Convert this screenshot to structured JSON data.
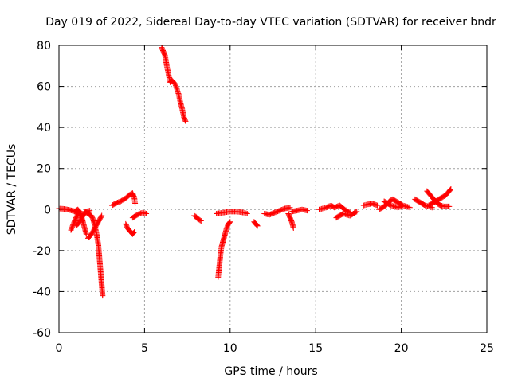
{
  "chart_data": {
    "type": "scatter",
    "title": "Day 019 of 2022, Sidereal Day-to-day VTEC variation (SDTVAR) for receiver bndr",
    "xlabel": "GPS time / hours",
    "ylabel": "SDTVAR / TECUs",
    "xlim": [
      0,
      25
    ],
    "ylim": [
      -60,
      80
    ],
    "xticks": [
      0,
      5,
      10,
      15,
      20,
      25
    ],
    "yticks": [
      -60,
      -40,
      -20,
      0,
      20,
      40,
      60,
      80
    ],
    "xtick_labels": [
      "0",
      "5",
      "10",
      "15",
      "20",
      "25"
    ],
    "ytick_labels": [
      "-60",
      "-40",
      "-20",
      "0",
      "20",
      "40",
      "60",
      "80"
    ],
    "grid": true,
    "marker": "+",
    "series": [
      {
        "name": "SDTVAR",
        "color": "#ff0000",
        "tracks": [
          [
            [
              0.0,
              0.5
            ],
            [
              0.3,
              0.3
            ],
            [
              0.6,
              -0.2
            ],
            [
              0.9,
              -0.8
            ],
            [
              1.1,
              -1.2
            ]
          ],
          [
            [
              0.7,
              -10
            ],
            [
              0.8,
              -8
            ],
            [
              0.9,
              -6
            ],
            [
              1.0,
              -4
            ],
            [
              1.1,
              -2.5
            ],
            [
              1.2,
              -1.5
            ]
          ],
          [
            [
              0.9,
              -1
            ],
            [
              1.0,
              -0.5
            ],
            [
              1.1,
              0
            ],
            [
              1.2,
              -1
            ],
            [
              1.3,
              -3
            ],
            [
              1.4,
              -6
            ],
            [
              1.5,
              -9
            ],
            [
              1.6,
              -12
            ]
          ],
          [
            [
              1.0,
              -8
            ],
            [
              1.2,
              -6
            ],
            [
              1.4,
              -3
            ],
            [
              1.6,
              -1
            ],
            [
              1.8,
              -0.5
            ]
          ],
          [
            [
              1.5,
              -1
            ],
            [
              1.7,
              -2
            ],
            [
              1.9,
              -3
            ],
            [
              2.0,
              -5
            ],
            [
              2.1,
              -8
            ],
            [
              2.2,
              -12
            ],
            [
              2.3,
              -17
            ],
            [
              2.35,
              -22
            ],
            [
              2.4,
              -27
            ],
            [
              2.45,
              -32
            ],
            [
              2.5,
              -37
            ],
            [
              2.55,
              -42
            ]
          ],
          [
            [
              1.7,
              -14
            ],
            [
              1.9,
              -12
            ],
            [
              2.1,
              -9
            ],
            [
              2.3,
              -6
            ],
            [
              2.5,
              -3
            ]
          ],
          [
            [
              3.1,
              2
            ],
            [
              3.3,
              3
            ],
            [
              3.6,
              4
            ],
            [
              3.9,
              5.5
            ],
            [
              4.1,
              7
            ],
            [
              4.3,
              8
            ],
            [
              4.4,
              6
            ],
            [
              4.45,
              3
            ]
          ],
          [
            [
              3.9,
              -7
            ],
            [
              4.0,
              -9
            ],
            [
              4.1,
              -10
            ],
            [
              4.2,
              -11
            ],
            [
              4.3,
              -12
            ],
            [
              4.4,
              -11
            ]
          ],
          [
            [
              4.3,
              -4
            ],
            [
              4.5,
              -3
            ],
            [
              4.7,
              -2
            ],
            [
              4.9,
              -1.5
            ],
            [
              5.1,
              -2
            ]
          ],
          [
            [
              6.0,
              79
            ],
            [
              6.1,
              77
            ],
            [
              6.2,
              75
            ],
            [
              6.3,
              70
            ],
            [
              6.4,
              66
            ],
            [
              6.5,
              62
            ],
            [
              6.6,
              63
            ],
            [
              6.8,
              61
            ],
            [
              7.0,
              56
            ],
            [
              7.1,
              52
            ],
            [
              7.2,
              49
            ],
            [
              7.3,
              45
            ],
            [
              7.4,
              43
            ]
          ],
          [
            [
              7.9,
              -3
            ],
            [
              8.0,
              -3.5
            ],
            [
              8.1,
              -4.5
            ],
            [
              8.3,
              -5.5
            ]
          ],
          [
            [
              9.3,
              -33
            ],
            [
              9.35,
              -29
            ],
            [
              9.4,
              -25
            ],
            [
              9.45,
              -21
            ],
            [
              9.5,
              -18
            ],
            [
              9.6,
              -15
            ],
            [
              9.7,
              -12
            ],
            [
              9.8,
              -9
            ],
            [
              9.9,
              -7
            ],
            [
              10.0,
              -6
            ]
          ],
          [
            [
              9.2,
              -2
            ],
            [
              9.6,
              -1.5
            ],
            [
              10.0,
              -1
            ],
            [
              10.4,
              -1
            ],
            [
              10.8,
              -1.5
            ],
            [
              11.0,
              -2
            ]
          ],
          [
            [
              11.4,
              -6
            ],
            [
              11.5,
              -7
            ],
            [
              11.6,
              -8
            ]
          ],
          [
            [
              12.0,
              -2
            ],
            [
              12.3,
              -2.5
            ],
            [
              12.6,
              -1.5
            ],
            [
              12.9,
              -0.5
            ],
            [
              13.2,
              0.5
            ],
            [
              13.5,
              1
            ]
          ],
          [
            [
              13.4,
              -2
            ],
            [
              13.5,
              -4
            ],
            [
              13.6,
              -6
            ],
            [
              13.7,
              -9
            ]
          ],
          [
            [
              13.6,
              -1
            ],
            [
              13.9,
              -0.5
            ],
            [
              14.2,
              0
            ],
            [
              14.5,
              -0.5
            ]
          ],
          [
            [
              15.2,
              0
            ],
            [
              15.4,
              0.5
            ],
            [
              15.6,
              1
            ],
            [
              15.9,
              2
            ],
            [
              16.1,
              1
            ],
            [
              16.4,
              2
            ],
            [
              16.7,
              0
            ],
            [
              17.0,
              -1.5
            ]
          ],
          [
            [
              16.2,
              -4
            ],
            [
              16.4,
              -3
            ],
            [
              16.6,
              -2
            ],
            [
              16.8,
              -2.5
            ],
            [
              17.0,
              -3
            ],
            [
              17.2,
              -2
            ],
            [
              17.4,
              -1
            ]
          ],
          [
            [
              17.8,
              2
            ],
            [
              18.0,
              2.5
            ],
            [
              18.3,
              3
            ],
            [
              18.6,
              2
            ]
          ],
          [
            [
              18.7,
              0
            ],
            [
              18.9,
              1
            ],
            [
              19.1,
              2
            ],
            [
              19.3,
              4
            ],
            [
              19.5,
              5
            ],
            [
              19.7,
              4
            ],
            [
              19.9,
              3
            ],
            [
              20.1,
              2
            ],
            [
              20.3,
              1.5
            ],
            [
              20.5,
              1
            ]
          ],
          [
            [
              19.0,
              4
            ],
            [
              19.2,
              3
            ],
            [
              19.4,
              2
            ],
            [
              19.6,
              1.5
            ],
            [
              19.8,
              1
            ],
            [
              20.0,
              1.5
            ]
          ],
          [
            [
              20.8,
              5
            ],
            [
              21.0,
              4
            ],
            [
              21.2,
              3
            ],
            [
              21.4,
              2
            ],
            [
              21.6,
              1.5
            ],
            [
              21.8,
              1
            ]
          ],
          [
            [
              21.6,
              2
            ],
            [
              21.8,
              3
            ],
            [
              22.0,
              4
            ],
            [
              22.2,
              5
            ],
            [
              22.4,
              6
            ],
            [
              22.6,
              7
            ],
            [
              22.8,
              9
            ],
            [
              22.9,
              10
            ]
          ],
          [
            [
              21.5,
              9
            ],
            [
              21.7,
              7
            ],
            [
              21.9,
              5
            ],
            [
              22.1,
              3
            ],
            [
              22.3,
              2
            ],
            [
              22.5,
              1.5
            ],
            [
              22.8,
              1.5
            ]
          ]
        ]
      }
    ]
  }
}
